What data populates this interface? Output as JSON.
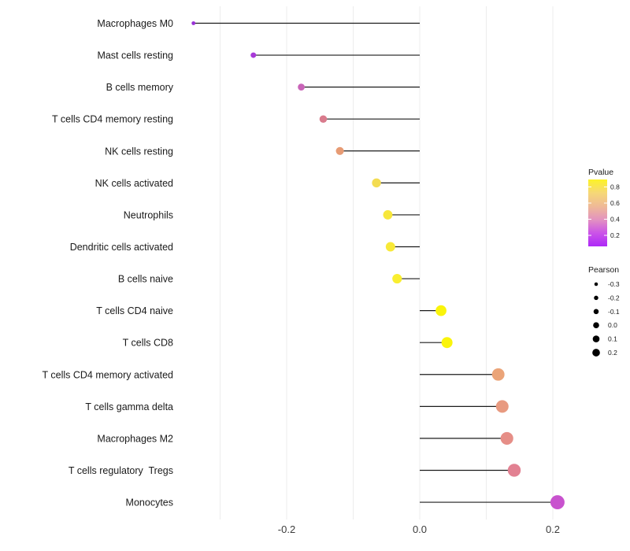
{
  "chart_data": {
    "type": "scatter",
    "subtype": "lollipop",
    "title": "",
    "xlabel": "",
    "ylabel": "",
    "xlim": [
      -0.355,
      0.235
    ],
    "grid": "vertical-only",
    "x_gridline_values": [
      -0.3,
      -0.2,
      -0.1,
      0.0,
      0.1,
      0.2
    ],
    "x_ticks": [
      {
        "value": -0.2,
        "label": "-0.2"
      },
      {
        "value": 0.0,
        "label": "0.0"
      },
      {
        "value": 0.2,
        "label": "0.2"
      }
    ],
    "points": [
      {
        "label": "Macrophages M0",
        "pearson": -0.34,
        "color": "#9831D6"
      },
      {
        "label": "Mast cells resting",
        "pearson": -0.25,
        "color": "#A83AD8"
      },
      {
        "label": "B cells memory",
        "pearson": -0.178,
        "color": "#C964B8"
      },
      {
        "label": "T cells CD4 memory resting",
        "pearson": -0.145,
        "color": "#D97B8D"
      },
      {
        "label": "NK cells resting",
        "pearson": -0.12,
        "color": "#E79B74"
      },
      {
        "label": "NK cells activated",
        "pearson": -0.065,
        "color": "#F3DC51"
      },
      {
        "label": "Neutrophils",
        "pearson": -0.048,
        "color": "#F7E73B"
      },
      {
        "label": "Dendritic cells activated",
        "pearson": -0.044,
        "color": "#F8E938"
      },
      {
        "label": "B cells naive",
        "pearson": -0.034,
        "color": "#F9EE30"
      },
      {
        "label": "T cells CD4 naive",
        "pearson": 0.032,
        "color": "#FAF40B"
      },
      {
        "label": "T cells CD8",
        "pearson": 0.041,
        "color": "#FAF40B"
      },
      {
        "label": "T cells CD4 memory activated",
        "pearson": 0.118,
        "color": "#EBA478"
      },
      {
        "label": "T cells gamma delta",
        "pearson": 0.124,
        "color": "#E89A80"
      },
      {
        "label": "Macrophages M2",
        "pearson": 0.131,
        "color": "#E68E87"
      },
      {
        "label": "T cells regulatory  Tregs",
        "pearson": 0.142,
        "color": "#E28192"
      },
      {
        "label": "Monocytes",
        "pearson": 0.207,
        "color": "#C852CE"
      }
    ],
    "legend_pvalue": {
      "title": "Pvalue",
      "tick_labels": [
        "0.8",
        "0.6",
        "0.4",
        "0.2"
      ],
      "tick_values": [
        0.8,
        0.6,
        0.4,
        0.2
      ],
      "gradient_top_to_bottom": [
        "#FCF327",
        "#F6D877",
        "#EFBA96",
        "#E393C0",
        "#CB53E8",
        "#AE29F7"
      ]
    },
    "legend_pearson": {
      "title": "Pearson",
      "entries": [
        "-0.3",
        "-0.2",
        "-0.1",
        "0.0",
        "0.1",
        "0.2"
      ],
      "entry_values": [
        -0.3,
        -0.2,
        -0.1,
        0.0,
        0.1,
        0.2
      ]
    },
    "colors": {
      "stem": "#1C1C1C",
      "gridline": "#ECECEC",
      "axis_text": "#3C3C3C",
      "label_text": "#1A1A1A",
      "legend_text": "#1A1A1A",
      "size_dot": "#000000",
      "background": "#FFFFFF"
    }
  }
}
